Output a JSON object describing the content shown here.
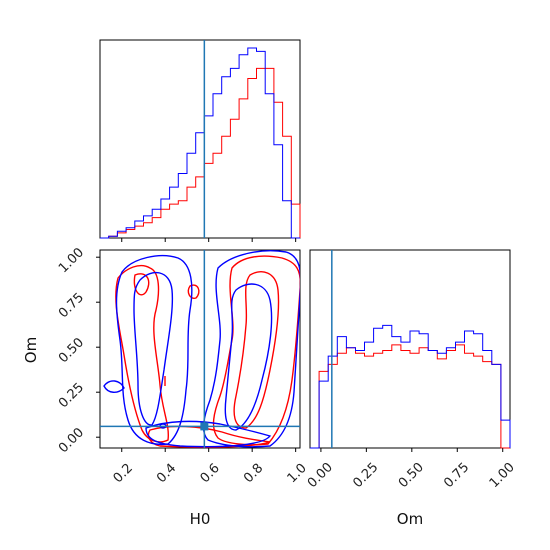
{
  "chart_data": {
    "type": "corner",
    "parameters": [
      "H0",
      "Om"
    ],
    "truths": {
      "H0": 0.58,
      "Om": 0.06
    },
    "colors": {
      "red": "#ff0000",
      "blue": "#0000ff",
      "truth": "#1f77b4",
      "frame": "#000000"
    },
    "H0_range": [
      0.1,
      1.02
    ],
    "Om_range": [
      -0.06,
      1.04
    ],
    "H0_ticks": [
      0.2,
      0.4,
      0.6,
      0.8,
      1.0
    ],
    "H0_tick_labels": [
      "0.2",
      "0.4",
      "0.6",
      "0.8",
      "1.0"
    ],
    "Om_ticks": [
      0.0,
      0.25,
      0.5,
      0.75,
      1.0
    ],
    "Om_tick_labels": [
      "0.00",
      "0.25",
      "0.50",
      "0.75",
      "1.00"
    ],
    "xlabel_left": "H0",
    "xlabel_right": "Om",
    "ylabel": "Om",
    "H0_hist": {
      "bin_edges": [
        0.1,
        0.14,
        0.18,
        0.22,
        0.26,
        0.3,
        0.34,
        0.38,
        0.42,
        0.46,
        0.5,
        0.54,
        0.58,
        0.62,
        0.66,
        0.7,
        0.74,
        0.78,
        0.82,
        0.86,
        0.9,
        0.94,
        0.98,
        1.02
      ],
      "red": [
        0,
        1,
        3,
        5,
        7,
        9,
        12,
        17,
        20,
        22,
        30,
        36,
        44,
        50,
        60,
        70,
        82,
        94,
        100,
        100,
        80,
        60,
        20
      ],
      "blue": [
        0,
        1,
        4,
        6,
        10,
        13,
        17,
        23,
        30,
        38,
        50,
        62,
        72,
        85,
        95,
        100,
        108,
        112,
        110,
        85,
        55,
        22,
        0
      ]
    },
    "Om_hist": {
      "bin_edges": [
        -0.06,
        -0.01,
        0.04,
        0.09,
        0.14,
        0.19,
        0.24,
        0.29,
        0.34,
        0.39,
        0.44,
        0.49,
        0.54,
        0.59,
        0.64,
        0.69,
        0.74,
        0.79,
        0.84,
        0.89,
        0.94,
        0.99,
        1.04
      ],
      "red": [
        0,
        55,
        60,
        68,
        72,
        68,
        66,
        68,
        70,
        74,
        70,
        68,
        72,
        70,
        64,
        70,
        74,
        68,
        66,
        62,
        60,
        0
      ],
      "blue": [
        0,
        48,
        66,
        80,
        72,
        70,
        76,
        86,
        88,
        80,
        76,
        84,
        82,
        70,
        68,
        72,
        76,
        84,
        82,
        70,
        60,
        20
      ]
    }
  }
}
